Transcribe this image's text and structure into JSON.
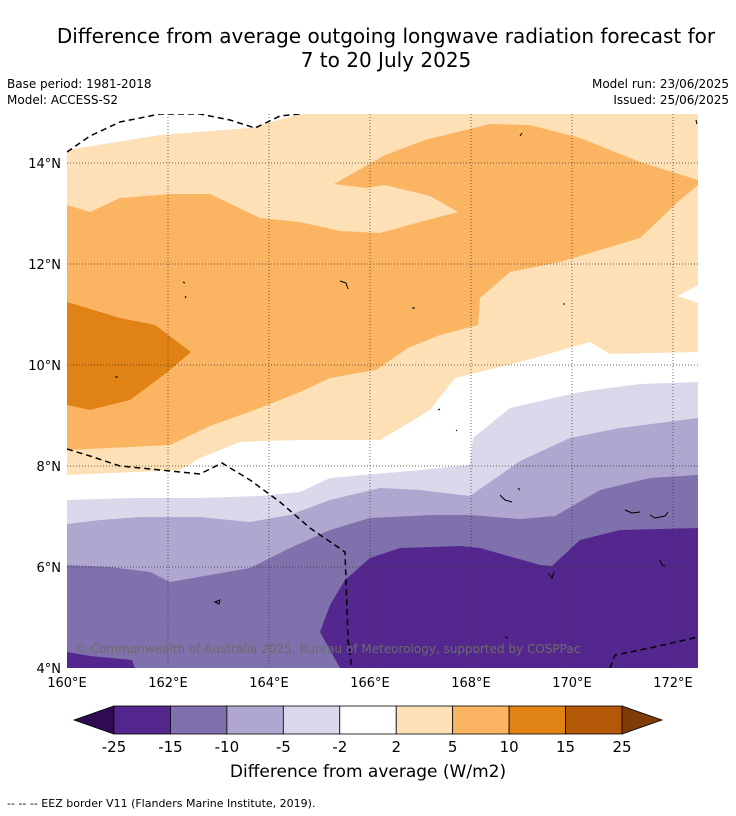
{
  "title": {
    "line1": "Difference from average outgoing longwave radiation forecast for",
    "line2": "7 to 20 July 2025"
  },
  "meta": {
    "base_period": "Base period: 1981-2018",
    "model": "Model: ACCESS-S2",
    "model_run": "Model run: 23/06/2025",
    "issued": "Issued: 25/06/2025"
  },
  "map": {
    "lon_labels": [
      "160°E",
      "162°E",
      "164°E",
      "166°E",
      "168°E",
      "170°E",
      "172°E"
    ],
    "lat_labels": [
      "14°N",
      "12°N",
      "10°N",
      "8°N",
      "6°N",
      "4°N"
    ],
    "copyright": "© Commonwealth of Australia 2025, Bureau of Meteorology, supported by COSPPac"
  },
  "colorbar": {
    "ticks": [
      "-25",
      "-15",
      "-10",
      "-5",
      "-2",
      "2",
      "5",
      "10",
      "15",
      "25"
    ],
    "colors": [
      "#2f0a55",
      "#54278f",
      "#7f71ac",
      "#afa7d0",
      "#d9d9eb",
      "#ffffff",
      "#fde0b6",
      "#fbb562",
      "#e08214",
      "#b35807",
      "#7f3b08"
    ],
    "title": "Difference from average (W/m2)"
  },
  "footer": "-- -- -- EEZ border V11 (Flanders Marine Institute, 2019)."
}
